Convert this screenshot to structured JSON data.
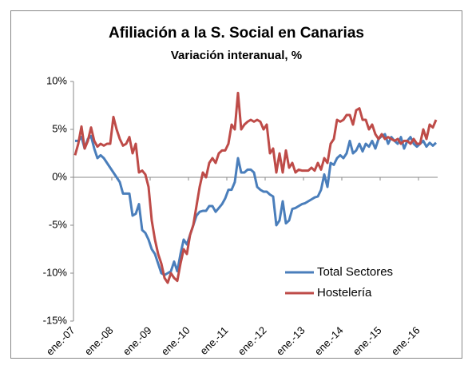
{
  "chart_data": {
    "type": "line",
    "title": "Afiliación a la S. Social en Canarias",
    "subtitle": "Variación interanual, %",
    "categories": [
      "ene.-07",
      null,
      null,
      null,
      null,
      null,
      null,
      null,
      null,
      null,
      null,
      null,
      "ene.-08",
      null,
      null,
      null,
      null,
      null,
      null,
      null,
      null,
      null,
      null,
      null,
      "ene.-09",
      null,
      null,
      null,
      null,
      null,
      null,
      null,
      null,
      null,
      null,
      null,
      "ene.-10",
      null,
      null,
      null,
      null,
      null,
      null,
      null,
      null,
      null,
      null,
      null,
      "ene.-11",
      null,
      null,
      null,
      null,
      null,
      null,
      null,
      null,
      null,
      null,
      null,
      "ene.-12",
      null,
      null,
      null,
      null,
      null,
      null,
      null,
      null,
      null,
      null,
      null,
      "ene.-13",
      null,
      null,
      null,
      null,
      null,
      null,
      null,
      null,
      null,
      null,
      null,
      "ene.-14",
      null,
      null,
      null,
      null,
      null,
      null,
      null,
      null,
      null,
      null,
      null,
      "ene.-15",
      null,
      null,
      null,
      null,
      null,
      null,
      null,
      null,
      null,
      null,
      null,
      "ene.-16",
      null,
      null,
      null,
      null,
      null
    ],
    "series": [
      {
        "name": "Total Sectores",
        "color": "#4a7ebb",
        "values": [
          3.8,
          3.8,
          4.2,
          3.0,
          4.0,
          4.3,
          3.0,
          2.0,
          2.3,
          2.0,
          1.5,
          1.0,
          0.5,
          0,
          -0.5,
          -1.7,
          -1.7,
          -1.7,
          -4,
          -3.8,
          -2.8,
          -5.5,
          -5.8,
          -6.5,
          -7.5,
          -8,
          -9,
          -10,
          -10.2,
          -10,
          -9.8,
          -8.8,
          -9.8,
          -8,
          -6.5,
          -7,
          -6,
          -5,
          -4,
          -3.6,
          -3.5,
          -3.5,
          -3,
          -3,
          -3.6,
          -3.2,
          -2.8,
          -2.2,
          -1.3,
          -1.3,
          -0.5,
          2,
          0.5,
          0.5,
          0.8,
          0.8,
          0.5,
          -1,
          -1.3,
          -1.5,
          -1.5,
          -1.8,
          -2.0,
          -5.0,
          -4.5,
          -2.5,
          -4.8,
          -4.5,
          -3.3,
          -3.2,
          -3.0,
          -2.8,
          -2.7,
          -2.5,
          -2.3,
          -2.1,
          -2.0,
          -1.3,
          0.3,
          -1.0,
          1.5,
          1.3,
          2.0,
          2.3,
          2.0,
          2.5,
          3.8,
          2.5,
          2.8,
          3.5,
          2.7,
          3.5,
          3.2,
          3.8,
          3.0,
          4.0,
          4.3,
          4.5,
          3.5,
          4.2,
          3.8,
          3.5,
          4.2,
          3.0,
          3.8,
          4.2,
          3.5,
          3.2,
          3.5,
          3.8,
          3.2,
          3.6,
          3.3,
          3.6
        ]
      },
      {
        "name": "Hostelería",
        "color": "#be4b48",
        "values": [
          2.3,
          3.5,
          5.3,
          3.0,
          3.8,
          5.2,
          3.8,
          3.2,
          3.5,
          3.3,
          3.5,
          3.5,
          6.3,
          5.0,
          4.0,
          3.3,
          3.5,
          4.2,
          2.5,
          3.5,
          0.5,
          0.7,
          0.3,
          -1.0,
          -4.5,
          -6.5,
          -8.0,
          -9.0,
          -10.5,
          -11.0,
          -10.0,
          -10.5,
          -10.8,
          -9.0,
          -7.5,
          -8.0,
          -6.0,
          -5.0,
          -3.0,
          -1.0,
          0.5,
          0,
          1.5,
          2.0,
          1.5,
          2.5,
          2.8,
          2.8,
          3.5,
          5.5,
          5.0,
          8.8,
          5.0,
          5.5,
          5.8,
          6.0,
          5.8,
          6.0,
          5.8,
          5.0,
          5.5,
          2.5,
          3.0,
          0.5,
          2.5,
          0.5,
          2.8,
          1.0,
          1.5,
          0.5,
          0.8,
          0.7,
          0.7,
          0.7,
          1.0,
          0.7,
          1.5,
          0.8,
          2.0,
          1.5,
          3.5,
          4.0,
          6.0,
          5.8,
          6.0,
          6.5,
          6.5,
          5.5,
          7.0,
          7.2,
          6.0,
          6.0,
          5.0,
          5.5,
          4.5,
          4.0,
          4.5,
          4.0,
          4.2,
          4.0,
          3.8,
          4.0,
          3.5,
          3.8,
          3.8,
          3.5,
          4.0,
          3.5,
          3.5,
          5.0,
          4.0,
          5.5,
          5.2,
          6.0
        ]
      }
    ],
    "ylim": [
      -15,
      10
    ],
    "yticks": [
      {
        "value": -15,
        "label": "-15%"
      },
      {
        "value": -10,
        "label": "-10%"
      },
      {
        "value": -5,
        "label": "-5%"
      },
      {
        "value": 0,
        "label": "0%"
      },
      {
        "value": 5,
        "label": "5%"
      },
      {
        "value": 10,
        "label": "10%"
      }
    ],
    "legend": "lower right"
  }
}
